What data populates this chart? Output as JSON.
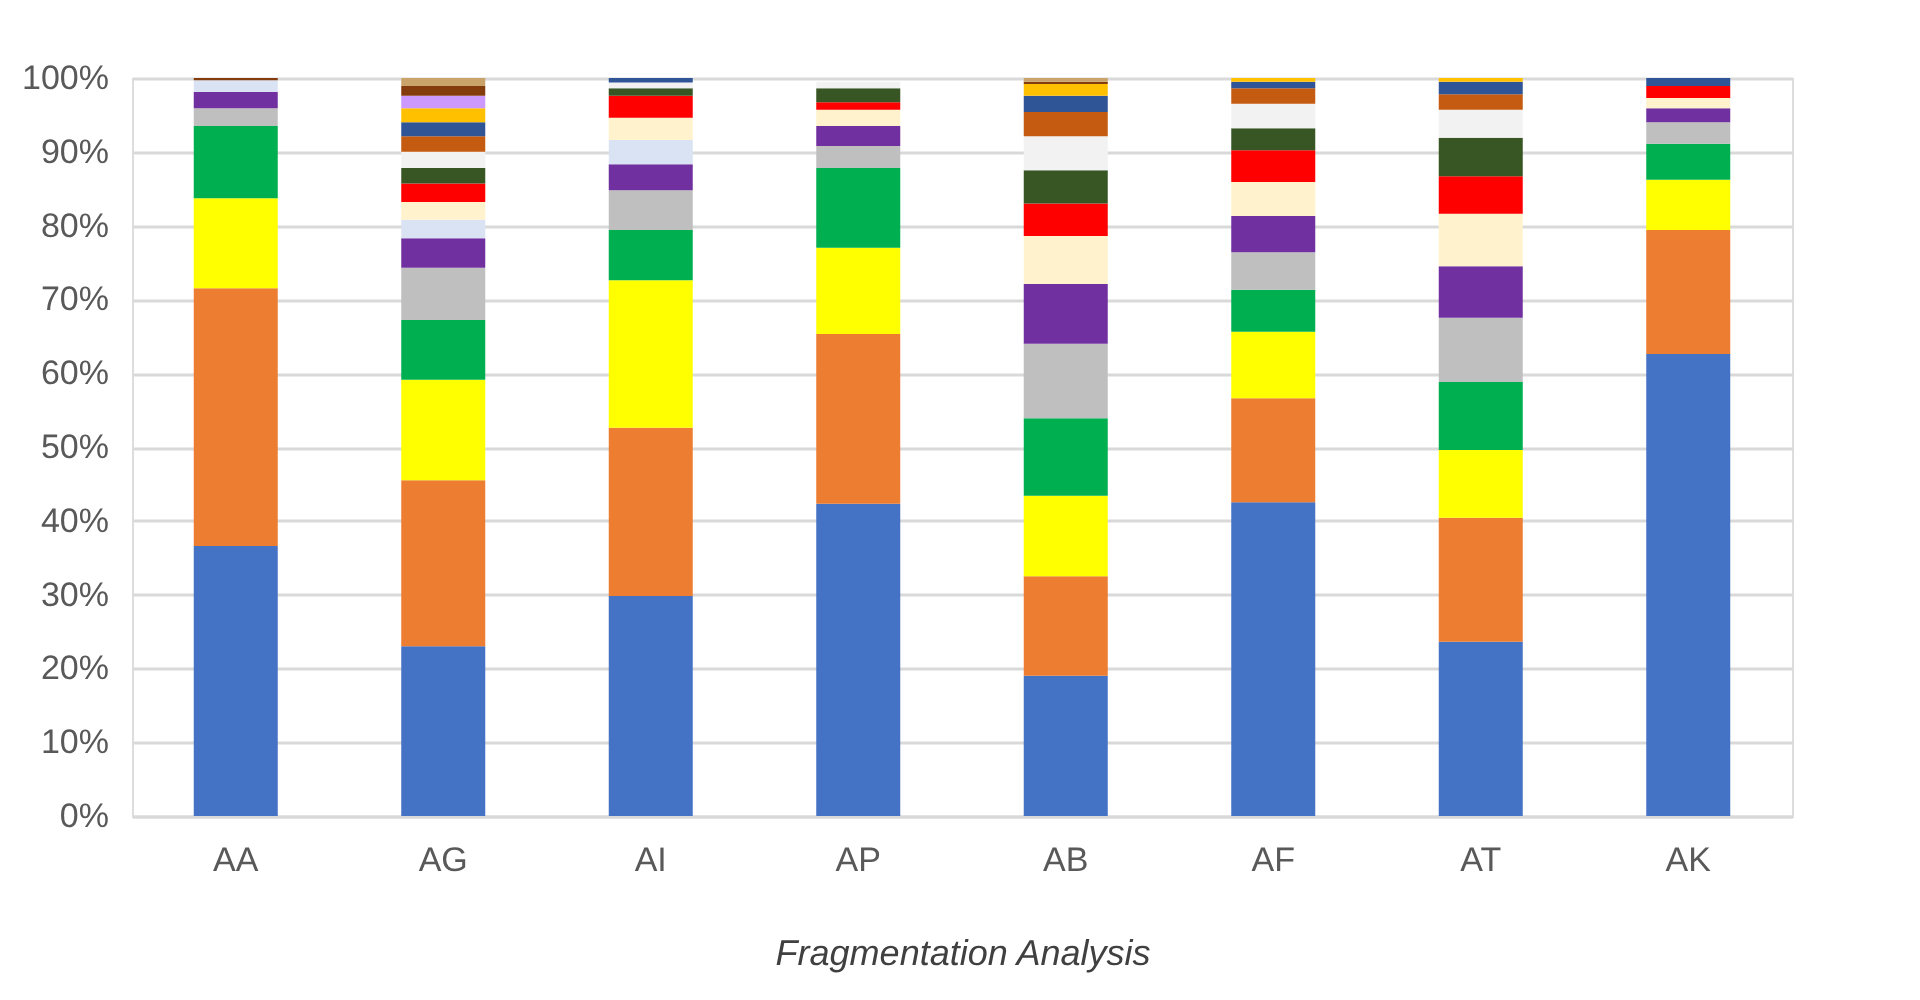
{
  "chart_data": {
    "type": "bar",
    "stacked": true,
    "xlabel": "Fragmentation Analysis",
    "categories": [
      "AA",
      "AG",
      "AI",
      "AP",
      "AB",
      "AF",
      "AT",
      "AK"
    ],
    "series": [
      {
        "color": "#4472c4",
        "values": [
          36.6,
          23.0,
          29.8,
          42.3,
          19.0,
          42.5,
          23.6,
          62.6
        ]
      },
      {
        "color": "#ed7d31",
        "values": [
          34.9,
          22.5,
          22.8,
          23.0,
          13.5,
          14.1,
          16.8,
          16.8
        ]
      },
      {
        "color": "#ffff00",
        "values": [
          12.2,
          13.6,
          20.0,
          11.7,
          10.9,
          9.0,
          9.2,
          6.8
        ]
      },
      {
        "color": "#00b050",
        "values": [
          9.8,
          8.1,
          6.8,
          10.8,
          10.5,
          5.7,
          9.2,
          4.9
        ]
      },
      {
        "color": "#bfbfbf",
        "values": [
          2.4,
          7.1,
          5.4,
          3.0,
          10.1,
          5.1,
          8.7,
          2.9
        ]
      },
      {
        "color": "#7030a0",
        "values": [
          2.2,
          4.0,
          3.5,
          2.7,
          8.1,
          4.9,
          7.0,
          1.9
        ]
      },
      {
        "color": "#dae3f3",
        "values": [
          1.6,
          2.5,
          3.3,
          0,
          0,
          0,
          0,
          0
        ]
      },
      {
        "color": "#fff2cc",
        "values": [
          0,
          2.4,
          3.0,
          2.2,
          6.5,
          4.6,
          7.1,
          1.4
        ]
      },
      {
        "color": "#ff0000",
        "values": [
          0,
          2.5,
          3.0,
          1.0,
          4.4,
          4.3,
          5.1,
          1.6
        ]
      },
      {
        "color": "#375623",
        "values": [
          0,
          2.1,
          1.0,
          1.9,
          4.5,
          3.0,
          5.2,
          0
        ]
      },
      {
        "color": "#f2f2f2",
        "values": [
          0,
          2.2,
          0.8,
          0.9,
          4.6,
          3.3,
          3.8,
          0
        ]
      },
      {
        "color": "#c55a11",
        "values": [
          0,
          2.1,
          0,
          0,
          3.3,
          2.1,
          2.1,
          0
        ]
      },
      {
        "color": "#2f5597",
        "values": [
          0,
          1.9,
          0.6,
          0,
          2.2,
          0.9,
          1.7,
          1.1
        ]
      },
      {
        "color": "#ffc000",
        "values": [
          0,
          1.9,
          0,
          0,
          1.6,
          0.5,
          0.5,
          0
        ]
      },
      {
        "color": "#cc99ff",
        "values": [
          0,
          1.7,
          0,
          0,
          0,
          0,
          0,
          0
        ]
      },
      {
        "color": "#843c0c",
        "values": [
          0.3,
          1.3,
          0,
          0,
          0.3,
          0,
          0,
          0
        ]
      },
      {
        "color": "#c9a36a",
        "values": [
          0,
          1.1,
          0,
          0,
          0.5,
          0,
          0,
          0
        ]
      }
    ],
    "ylim": [
      0,
      100
    ],
    "yticks": [
      {
        "value": 0,
        "label": "0%"
      },
      {
        "value": 10,
        "label": "10%"
      },
      {
        "value": 20,
        "label": "20%"
      },
      {
        "value": 30,
        "label": "30%"
      },
      {
        "value": 40,
        "label": "40%"
      },
      {
        "value": 50,
        "label": "50%"
      },
      {
        "value": 60,
        "label": "60%"
      },
      {
        "value": 70,
        "label": "70%"
      },
      {
        "value": 80,
        "label": "80%"
      },
      {
        "value": 90,
        "label": "90%"
      },
      {
        "value": 100,
        "label": "100%"
      }
    ],
    "grid": "y",
    "legend": false
  }
}
